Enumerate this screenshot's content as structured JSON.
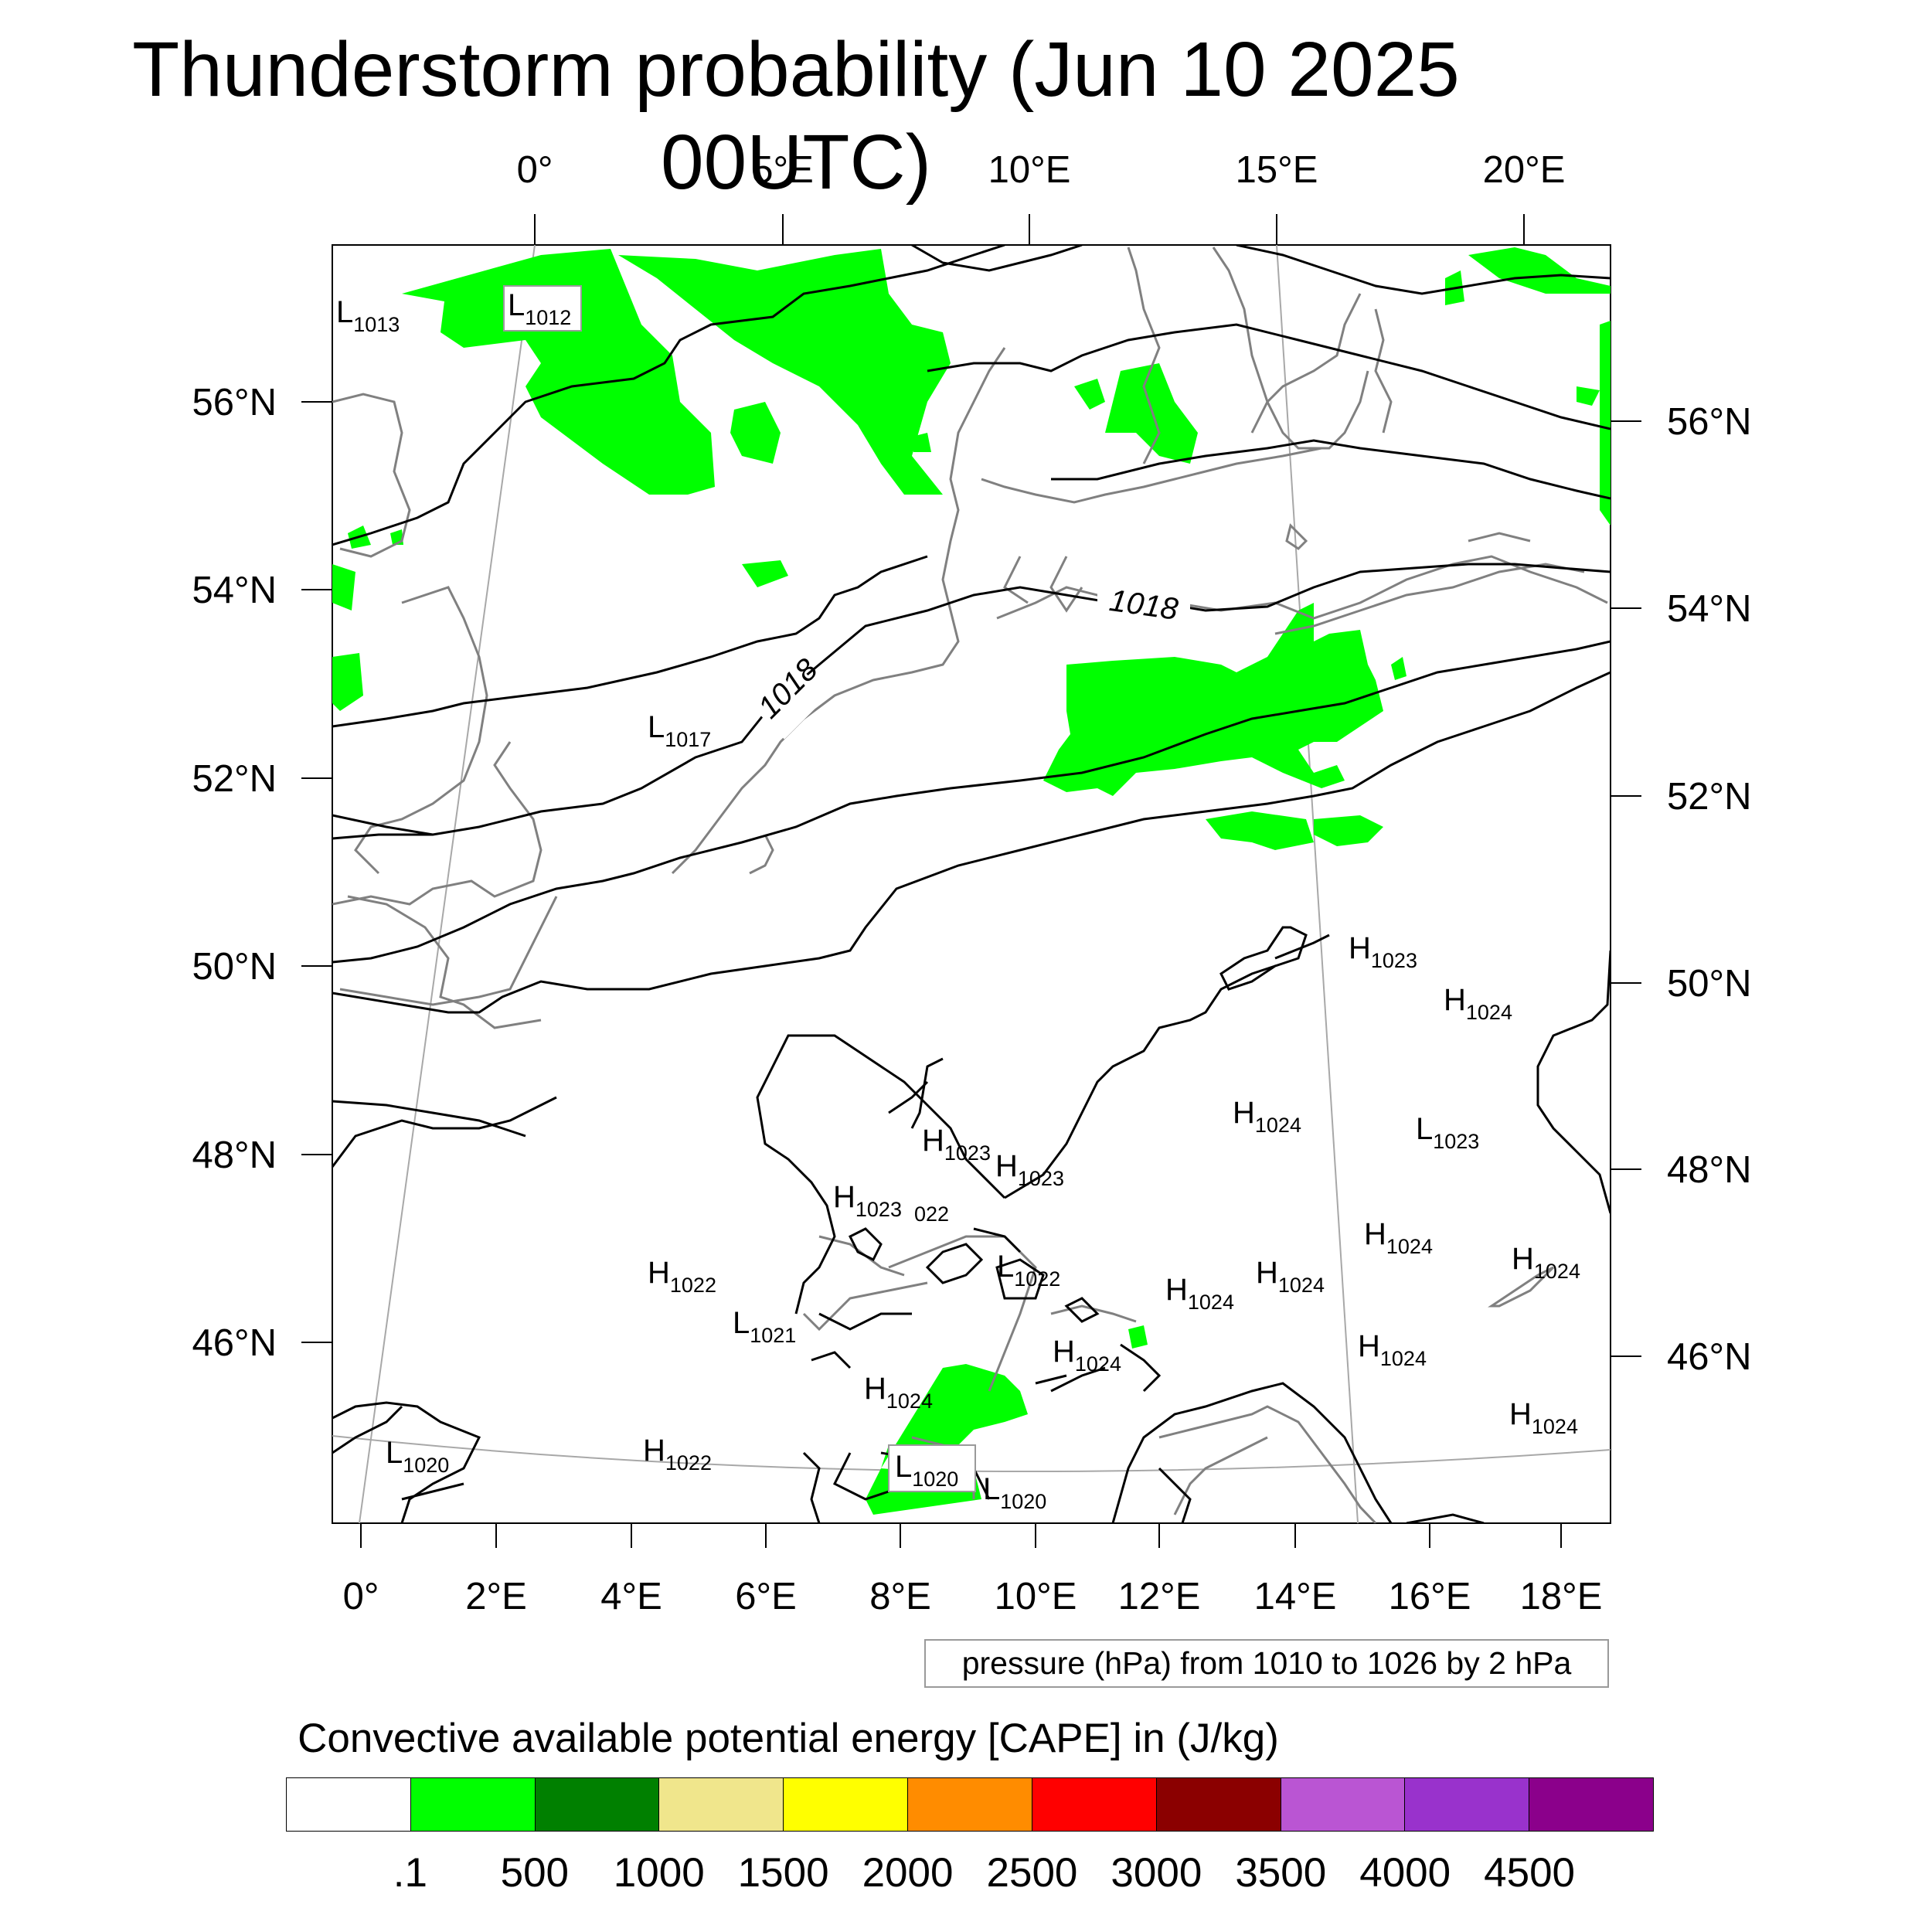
{
  "title": "Thunderstorm probability (Jun 10 2025 00UTC)",
  "top_lon_ticks": [
    "0°",
    "5°E",
    "10°E",
    "15°E",
    "20°E"
  ],
  "bottom_lon_ticks": [
    "0°",
    "2°E",
    "4°E",
    "6°E",
    "8°E",
    "10°E",
    "12°E",
    "14°E",
    "16°E",
    "18°E"
  ],
  "left_lat_ticks": [
    "56°N",
    "54°N",
    "52°N",
    "50°N",
    "48°N",
    "46°N"
  ],
  "right_lat_ticks": [
    "56°N",
    "54°N",
    "52°N",
    "50°N",
    "48°N",
    "46°N"
  ],
  "isobar_labels": [
    "1018",
    "1018"
  ],
  "pressure_centers": [
    {
      "type": "L",
      "value": "1013"
    },
    {
      "type": "L",
      "value": "1012"
    },
    {
      "type": "L",
      "value": "1017"
    },
    {
      "type": "H",
      "value": "1023"
    },
    {
      "type": "H",
      "value": "1024"
    },
    {
      "type": "H",
      "value": "1024"
    },
    {
      "type": "L",
      "value": "1023"
    },
    {
      "type": "H",
      "value": "1023"
    },
    {
      "type": "H",
      "value": "1023"
    },
    {
      "type": "H",
      "value": "1023"
    },
    {
      "type": "H",
      "value": "1024"
    },
    {
      "type": "H",
      "value": "1024"
    },
    {
      "type": "H",
      "value": "1024"
    },
    {
      "type": "H",
      "value": "1022"
    },
    {
      "type": "L",
      "value": "1022"
    },
    {
      "type": "H",
      "value": "1024"
    },
    {
      "type": "L",
      "value": "1021"
    },
    {
      "type": "H",
      "value": "1024"
    },
    {
      "type": "H",
      "value": "1024"
    },
    {
      "type": "H",
      "value": "1024"
    },
    {
      "type": "H",
      "value": "1024"
    },
    {
      "type": "L",
      "value": "1020"
    },
    {
      "type": "H",
      "value": "1022"
    },
    {
      "type": "L",
      "value": "1020"
    },
    {
      "type": "L",
      "value": "1020"
    }
  ],
  "partial_label": "022",
  "contour_info": "pressure (hPa) from 1010 to 1026 by 2 hPa",
  "colorbar": {
    "title": "Convective available potential energy [CAPE] in (J/kg)",
    "labels": [
      ".1",
      "500",
      "1000",
      "1500",
      "2000",
      "2500",
      "3000",
      "3500",
      "4000",
      "4500"
    ],
    "colors": [
      "#ffffff",
      "#00ff00",
      "#008000",
      "#f0e68c",
      "#ffff00",
      "#ff8c00",
      "#ff0000",
      "#8b0000",
      "#ba55d3",
      "#9932cc",
      "#8b008b"
    ]
  },
  "colors": {
    "cape_shading": "#00ff00",
    "isobar": "#000000",
    "coastline": "#808080",
    "graticule": "#a0a0a0"
  }
}
